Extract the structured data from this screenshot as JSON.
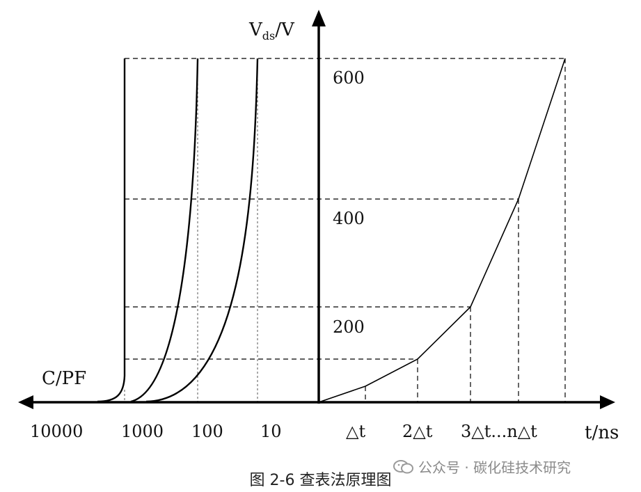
{
  "figure": {
    "y_axis_label_main": "V",
    "y_axis_label_sub": "ds",
    "y_axis_label_tail": "/V",
    "x_axis_right_label": "t/ns",
    "x_axis_left_label": "C/PF",
    "y_ticks": [
      "600",
      "400",
      "200"
    ],
    "capacitance_ticks": [
      "10000",
      "1000",
      "100",
      "10"
    ],
    "time_ticks": [
      "△t",
      "2△t",
      "3△t...n△t"
    ]
  },
  "caption": "图 2-6 查表法原理图",
  "watermark": {
    "text": "公众号 · 碳化硅技术研究",
    "icon": "wechat-icon"
  }
}
